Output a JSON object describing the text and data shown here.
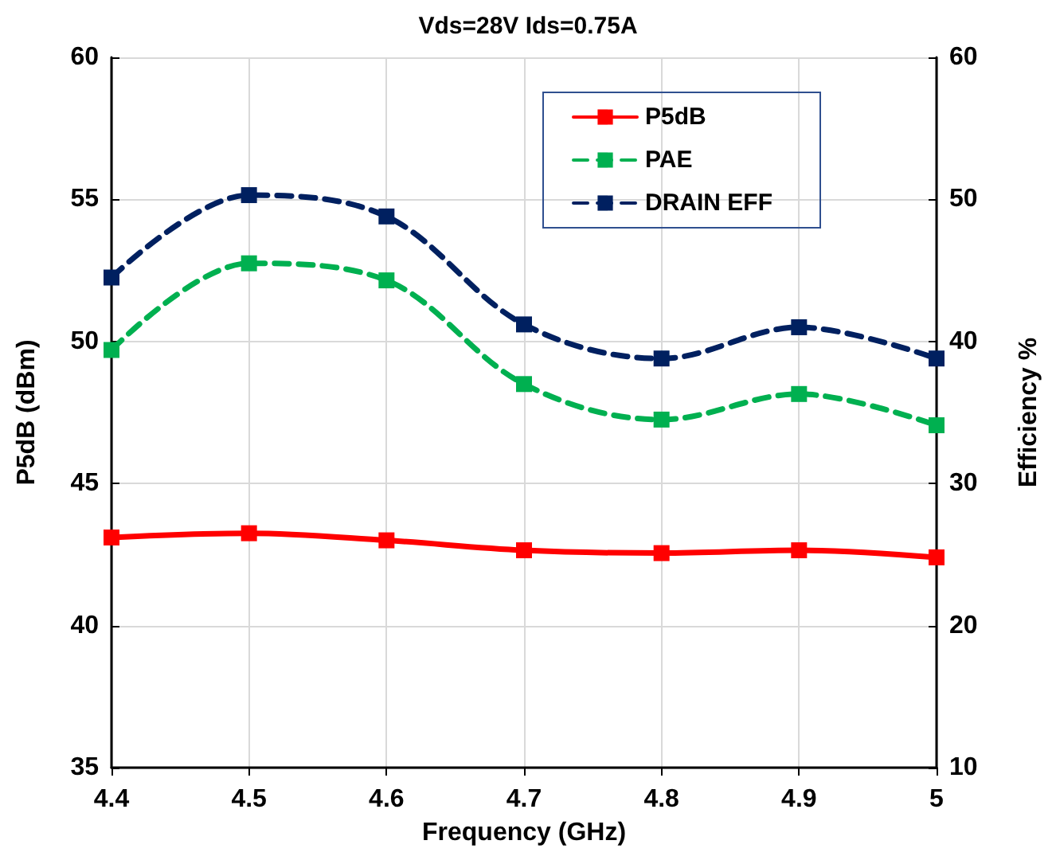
{
  "chart_data": {
    "type": "line",
    "title": "Vds=28V Ids=0.75A",
    "xlabel": "Frequency (GHz)",
    "ylabel": "P5dB (dBm)",
    "y2label": "Efficiency %",
    "x": [
      4.4,
      4.5,
      4.6,
      4.7,
      4.8,
      4.9,
      5
    ],
    "series": [
      {
        "name": "P5dB",
        "color": "#ff0000",
        "line_style": "solid",
        "values": [
          43.1,
          43.25,
          43.0,
          42.65,
          42.55,
          42.65,
          42.4
        ]
      },
      {
        "name": "PAE",
        "color": "#00b050",
        "line_style": "dashed",
        "axis": "y2",
        "values": [
          39.4,
          45.5,
          44.3,
          37.0,
          34.5,
          36.3,
          34.1
        ]
      },
      {
        "name": "DRAIN EFF",
        "color": "#002060",
        "line_style": "dashed",
        "axis": "y2",
        "values": [
          44.5,
          50.3,
          48.8,
          41.2,
          38.8,
          41.0,
          38.8
        ]
      }
    ],
    "xlim": [
      4.4,
      5
    ],
    "xticks": [
      4.4,
      4.5,
      4.6,
      4.7,
      4.8,
      4.9,
      5
    ],
    "ylim": [
      35,
      60
    ],
    "yticks": [
      35,
      40,
      45,
      50,
      55,
      60
    ],
    "y2lim": [
      10,
      60
    ],
    "y2ticks": [
      10,
      20,
      30,
      40,
      50,
      60
    ],
    "grid": true,
    "legend": "top right",
    "marker": "square"
  }
}
